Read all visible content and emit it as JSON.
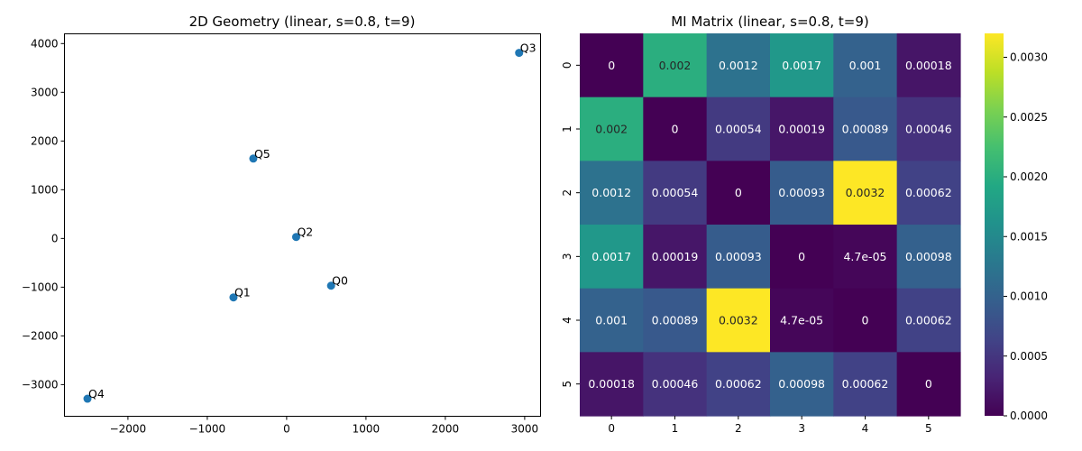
{
  "chart_data": [
    {
      "type": "scatter",
      "title": "2D Geometry (linear, s=0.8, t=9)",
      "xlim": [
        -2800,
        3200
      ],
      "ylim": [
        -3650,
        4200
      ],
      "xticks": [
        -2000,
        -1000,
        0,
        1000,
        2000,
        3000
      ],
      "xtick_labels": [
        "−2000",
        "−1000",
        "0",
        "1000",
        "2000",
        "3000"
      ],
      "yticks": [
        -3000,
        -2000,
        -1000,
        0,
        1000,
        2000,
        3000,
        4000
      ],
      "ytick_labels": [
        "−3000",
        "−2000",
        "−1000",
        "0",
        "1000",
        "2000",
        "3000",
        "4000"
      ],
      "grid": false,
      "color": "#1f77b4",
      "points": [
        {
          "label": "Q0",
          "x": 560,
          "y": -970
        },
        {
          "label": "Q1",
          "x": -670,
          "y": -1210
        },
        {
          "label": "Q2",
          "x": 120,
          "y": 30
        },
        {
          "label": "Q3",
          "x": 2930,
          "y": 3810
        },
        {
          "label": "Q4",
          "x": -2510,
          "y": -3290
        },
        {
          "label": "Q5",
          "x": -420,
          "y": 1640
        }
      ]
    },
    {
      "type": "heatmap",
      "title": "MI Matrix (linear, s=0.8, t=9)",
      "xticks": [
        "0",
        "1",
        "2",
        "3",
        "4",
        "5"
      ],
      "yticks": [
        "0",
        "1",
        "2",
        "3",
        "4",
        "5"
      ],
      "colormap": "viridis",
      "vmin": 0,
      "vmax": 0.0032,
      "colorbar_ticks": [
        0.0,
        0.0005,
        0.001,
        0.0015,
        0.002,
        0.0025,
        0.003
      ],
      "colorbar_tick_labels": [
        "0.0000",
        "0.0005",
        "0.0010",
        "0.0015",
        "0.0020",
        "0.0025",
        "0.0030"
      ],
      "values": [
        [
          0,
          0.002,
          0.0012,
          0.0017,
          0.001,
          0.00018
        ],
        [
          0.002,
          0,
          0.00054,
          0.00019,
          0.00089,
          0.00046
        ],
        [
          0.0012,
          0.00054,
          0,
          0.00093,
          0.0032,
          0.00062
        ],
        [
          0.0017,
          0.00019,
          0.00093,
          0,
          4.7e-05,
          0.00098
        ],
        [
          0.001,
          0.00089,
          0.0032,
          4.7e-05,
          0,
          0.00062
        ],
        [
          0.00018,
          0.00046,
          0.00062,
          0.00098,
          0.00062,
          0
        ]
      ],
      "labels": [
        [
          "0",
          "0.002",
          "0.0012",
          "0.0017",
          "0.001",
          "0.00018"
        ],
        [
          "0.002",
          "0",
          "0.00054",
          "0.00019",
          "0.00089",
          "0.00046"
        ],
        [
          "0.0012",
          "0.00054",
          "0",
          "0.00093",
          "0.0032",
          "0.00062"
        ],
        [
          "0.0017",
          "0.00019",
          "0.00093",
          "0",
          "4.7e-05",
          "0.00098"
        ],
        [
          "0.001",
          "0.00089",
          "0.0032",
          "4.7e-05",
          "0",
          "0.00062"
        ],
        [
          "0.00018",
          "0.00046",
          "0.00062",
          "0.00098",
          "0.00062",
          "0"
        ]
      ]
    }
  ]
}
